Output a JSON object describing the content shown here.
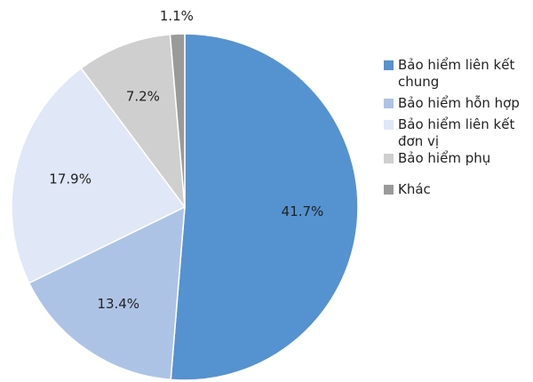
{
  "chart_data": {
    "type": "pie",
    "categories": [
      "Bảo hiểm liên kết chung",
      "Bảo hiểm hỗn hợp",
      "Bảo hiểm liên kết đơn vị",
      "Bảo hiểm phụ",
      "Khác"
    ],
    "values": [
      41.7,
      13.4,
      17.9,
      7.2,
      1.1
    ],
    "value_labels": [
      "41.7%",
      "13.4%",
      "17.9%",
      "7.2%",
      "1.1%"
    ],
    "colors": [
      "#5592d0",
      "#adc3e6",
      "#e0e7f6",
      "#cfcfcf",
      "#9a9a9a"
    ],
    "legend": "right"
  }
}
